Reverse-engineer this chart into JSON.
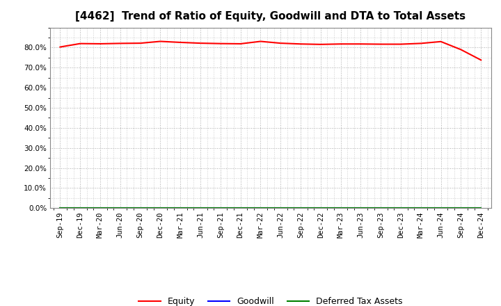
{
  "title": "[4462]  Trend of Ratio of Equity, Goodwill and DTA to Total Assets",
  "x_labels": [
    "Sep-19",
    "Dec-19",
    "Mar-20",
    "Jun-20",
    "Sep-20",
    "Dec-20",
    "Mar-21",
    "Jun-21",
    "Sep-21",
    "Dec-21",
    "Mar-22",
    "Jun-22",
    "Sep-22",
    "Dec-22",
    "Mar-23",
    "Jun-23",
    "Sep-23",
    "Dec-23",
    "Mar-24",
    "Jun-24",
    "Sep-24",
    "Dec-24"
  ],
  "equity": [
    0.803,
    0.82,
    0.819,
    0.821,
    0.822,
    0.831,
    0.826,
    0.822,
    0.82,
    0.819,
    0.831,
    0.822,
    0.818,
    0.816,
    0.818,
    0.818,
    0.817,
    0.817,
    0.821,
    0.83,
    0.79,
    0.738
  ],
  "goodwill": [
    0.0,
    0.0,
    0.0,
    0.0,
    0.0,
    0.0,
    0.0,
    0.0,
    0.0,
    0.0,
    0.0,
    0.0,
    0.0,
    0.0,
    0.0,
    0.0,
    0.0,
    0.0,
    0.0,
    0.0,
    0.0,
    0.0
  ],
  "dta": [
    0.0,
    0.0,
    0.0,
    0.0,
    0.0,
    0.0,
    0.0,
    0.0,
    0.0,
    0.0,
    0.0,
    0.0,
    0.0,
    0.0,
    0.0,
    0.0,
    0.0,
    0.0,
    0.0,
    0.0,
    0.0,
    0.0
  ],
  "equity_color": "#FF0000",
  "goodwill_color": "#0000FF",
  "dta_color": "#008000",
  "ylim": [
    0.0,
    0.9
  ],
  "yticks": [
    0.0,
    0.1,
    0.2,
    0.3,
    0.4,
    0.5,
    0.6,
    0.7,
    0.8
  ],
  "background_color": "#FFFFFF",
  "plot_bg_color": "#FFFFFF",
  "grid_color": "#AAAAAA",
  "title_fontsize": 11,
  "tick_fontsize": 7.5,
  "legend_labels": [
    "Equity",
    "Goodwill",
    "Deferred Tax Assets"
  ]
}
